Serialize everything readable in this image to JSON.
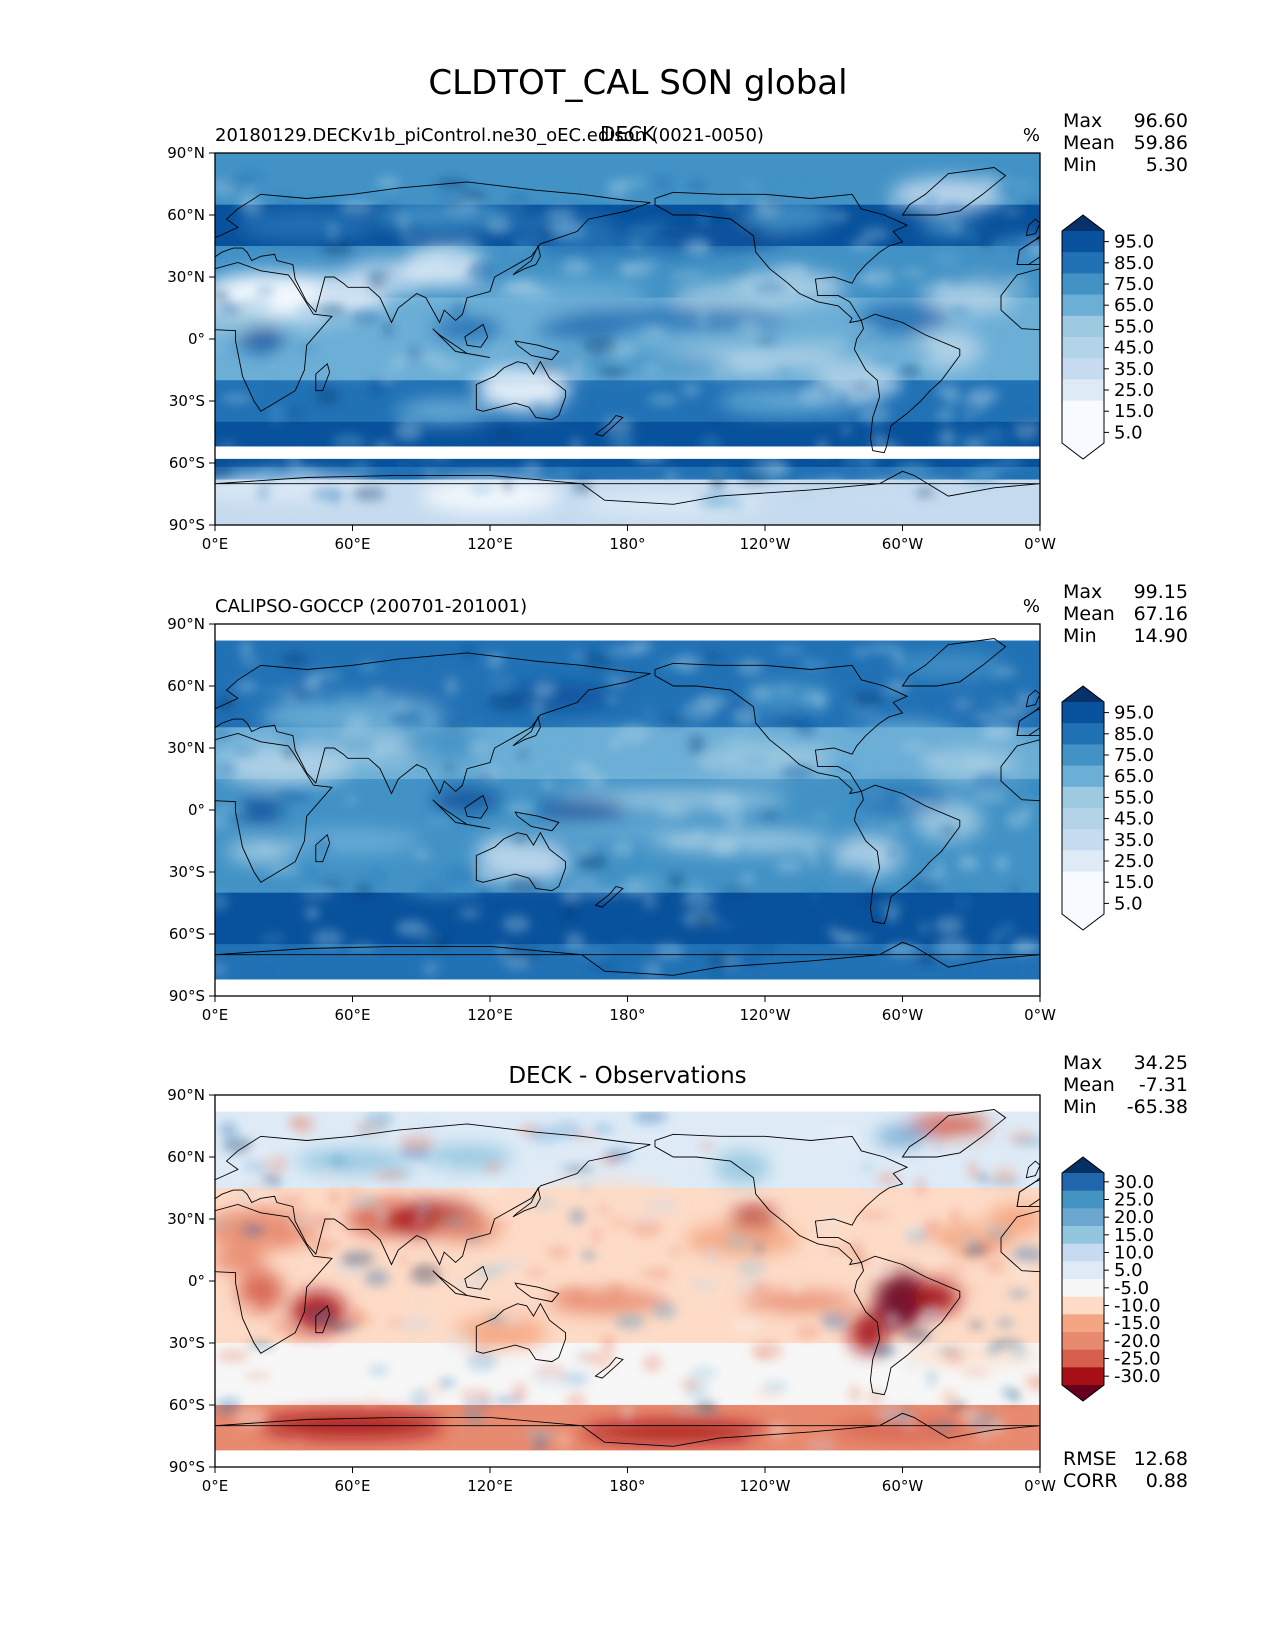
{
  "figure_title": "CLDTOT_CAL SON global",
  "colors": {
    "blues": [
      "#f7fbff",
      "#deebf7",
      "#c6dbef",
      "#b3d3e8",
      "#9ecae1",
      "#6baed6",
      "#4292c6",
      "#2171b5",
      "#08519c",
      "#08306b"
    ],
    "diverging": [
      "#67001f",
      "#a50f15",
      "#d6604d",
      "#e88a6f",
      "#f4a582",
      "#fddbc7",
      "#f7f7f7",
      "#deebf7",
      "#c6dbef",
      "#92c5de",
      "#6ba7d0",
      "#4393c3",
      "#2166ac",
      "#053061"
    ],
    "coast": "#000000"
  },
  "chart_data": [
    {
      "type": "heatmap",
      "panel": "test",
      "left_title": "20180129.DECKv1b_piControl.ne30_oEC.edison (0021-0050)",
      "center_title": "DECK",
      "units": "%",
      "stats": {
        "labels": [
          "Max",
          "Mean",
          "Min"
        ],
        "values": [
          "96.60",
          "59.86",
          "5.30"
        ]
      },
      "colorbar_ticks": [
        "95.0",
        "85.0",
        "75.0",
        "65.0",
        "55.0",
        "45.0",
        "35.0",
        "25.0",
        "15.0",
        "5.0"
      ],
      "x_ticks": [
        "0°E",
        "60°E",
        "120°E",
        "180°",
        "120°W",
        "60°W",
        "0°W"
      ],
      "y_ticks": [
        "90°N",
        "60°N",
        "30°N",
        "0°",
        "30°S",
        "60°S",
        "90°S"
      ],
      "xlim": [
        0,
        360
      ],
      "ylim": [
        -90,
        90
      ]
    },
    {
      "type": "heatmap",
      "panel": "reference",
      "left_title": "CALIPSO-GOCCP (200701-201001)",
      "center_title": "",
      "units": "%",
      "stats": {
        "labels": [
          "Max",
          "Mean",
          "Min"
        ],
        "values": [
          "99.15",
          "67.16",
          "14.90"
        ]
      },
      "colorbar_ticks": [
        "95.0",
        "85.0",
        "75.0",
        "65.0",
        "55.0",
        "45.0",
        "35.0",
        "25.0",
        "15.0",
        "5.0"
      ],
      "x_ticks": [
        "0°E",
        "60°E",
        "120°E",
        "180°",
        "120°W",
        "60°W",
        "0°W"
      ],
      "y_ticks": [
        "90°N",
        "60°N",
        "30°N",
        "0°",
        "30°S",
        "60°S",
        "90°S"
      ],
      "xlim": [
        0,
        360
      ],
      "ylim": [
        -90,
        90
      ]
    },
    {
      "type": "heatmap",
      "panel": "difference",
      "left_title": "",
      "center_title": "DECK - Observations",
      "units": "",
      "stats": {
        "labels": [
          "Max",
          "Mean",
          "Min"
        ],
        "values": [
          "34.25",
          "-7.31",
          "-65.38"
        ]
      },
      "colorbar_ticks": [
        "30.0",
        "25.0",
        "20.0",
        "15.0",
        "10.0",
        "5.0",
        "-5.0",
        "-10.0",
        "-15.0",
        "-20.0",
        "-25.0",
        "-30.0"
      ],
      "x_ticks": [
        "0°E",
        "60°E",
        "120°E",
        "180°",
        "120°W",
        "60°W",
        "0°W"
      ],
      "y_ticks": [
        "90°N",
        "60°N",
        "30°N",
        "0°",
        "30°S",
        "60°S",
        "90°S"
      ],
      "xlim": [
        0,
        360
      ],
      "ylim": [
        -90,
        90
      ],
      "metrics": {
        "labels": [
          "RMSE",
          "CORR"
        ],
        "values": [
          "12.68",
          "0.88"
        ]
      }
    }
  ]
}
